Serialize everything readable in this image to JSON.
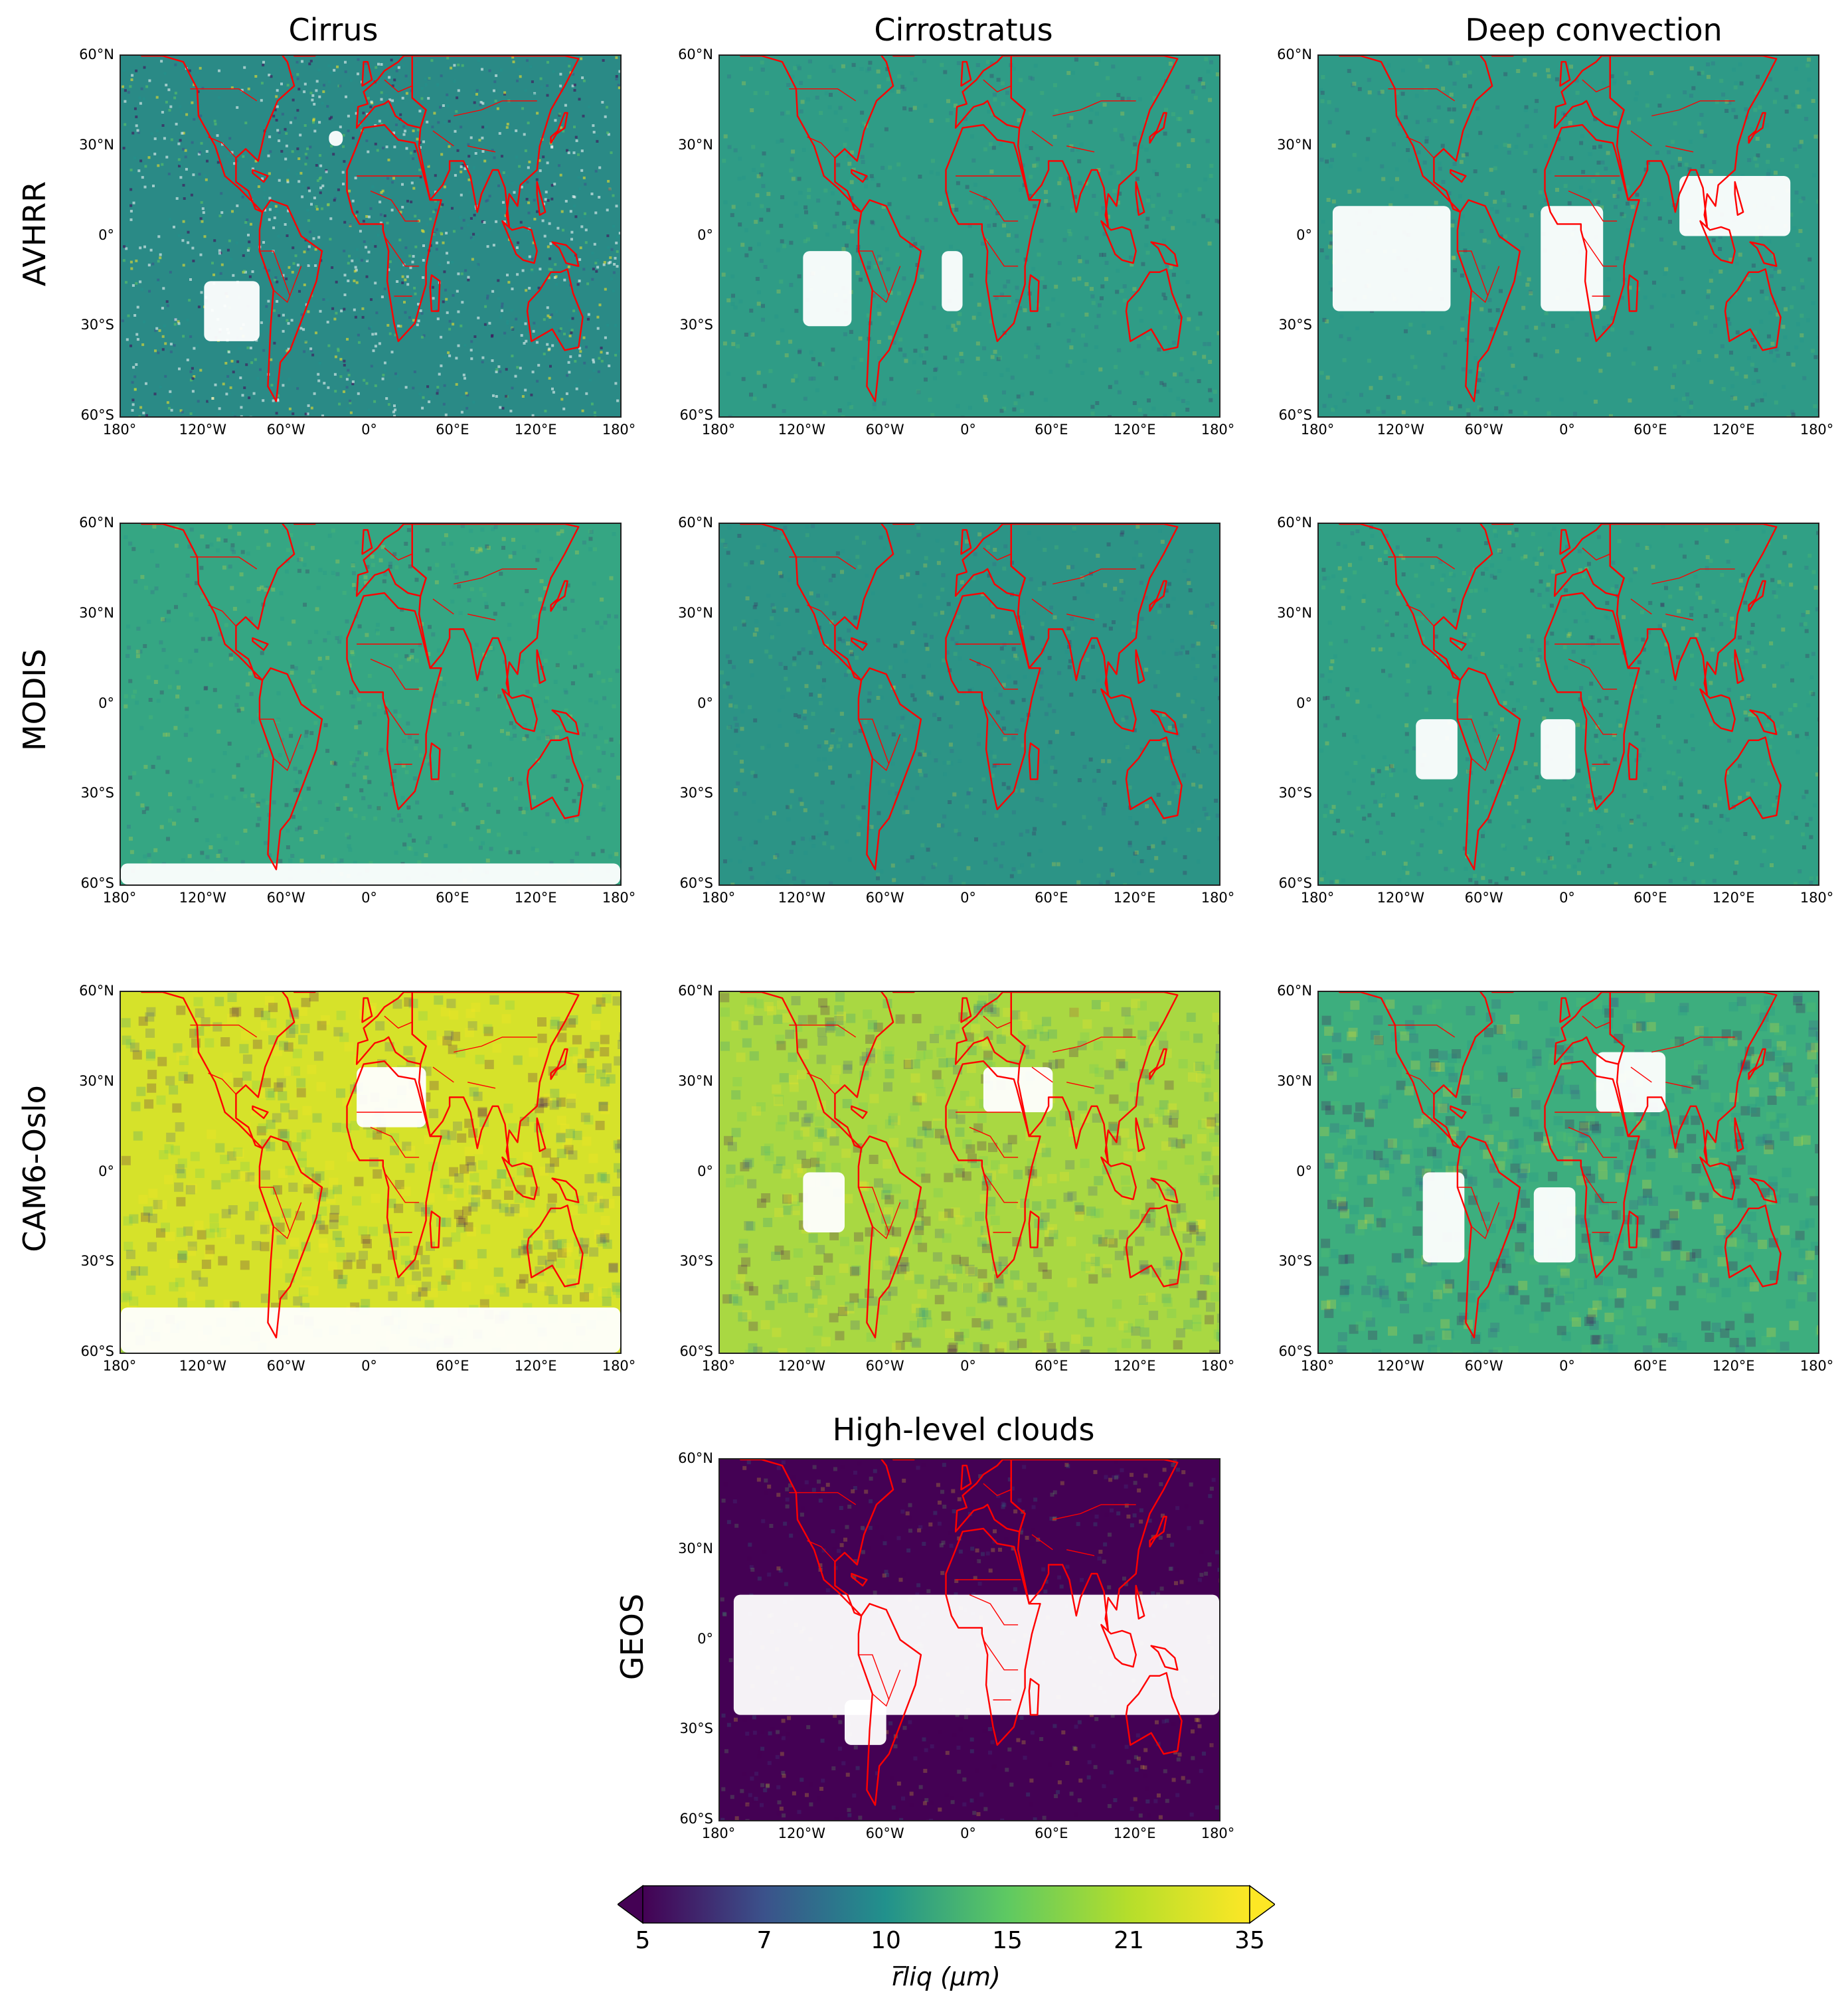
{
  "figure": {
    "column_titles": [
      "Cirrus",
      "Cirrostratus",
      "Deep convection"
    ],
    "row_labels": [
      "AVHRR",
      "MODIS",
      "CAM6-Oslo",
      "GEOS"
    ],
    "geos_panel_title": "High-level clouds",
    "lat_ticks": [
      "60°N",
      "30°N",
      "0°",
      "30°S",
      "60°S"
    ],
    "lon_ticks": [
      "180°",
      "120°W",
      "60°W",
      "0°",
      "60°E",
      "120°E",
      "180°"
    ],
    "coastline_color": "#ff0000",
    "missing_color": "#ffffff"
  },
  "colorbar": {
    "tick_labels": [
      "5",
      "7",
      "10",
      "15",
      "21",
      "35"
    ],
    "label": "r̅liq (μm)",
    "colormap": "viridis",
    "extend": "both",
    "colors": [
      "#440154",
      "#3b528b",
      "#21918c",
      "#5ec962",
      "#fde725"
    ]
  },
  "chart_data": [
    {
      "type": "heatmap",
      "dataset": "AVHRR",
      "cloud_type": "Cirrus",
      "dominant_color": "#2a8a86",
      "noise": "high"
    },
    {
      "type": "heatmap",
      "dataset": "AVHRR",
      "cloud_type": "Cirrostratus",
      "dominant_color": "#2f9c86"
    },
    {
      "type": "heatmap",
      "dataset": "AVHRR",
      "cloud_type": "Deep convection",
      "dominant_color": "#2e9a87"
    },
    {
      "type": "heatmap",
      "dataset": "MODIS",
      "cloud_type": "Cirrus",
      "dominant_color": "#35a683"
    },
    {
      "type": "heatmap",
      "dataset": "MODIS",
      "cloud_type": "Cirrostratus",
      "dominant_color": "#2c9486"
    },
    {
      "type": "heatmap",
      "dataset": "MODIS",
      "cloud_type": "Deep convection",
      "dominant_color": "#30a085"
    },
    {
      "type": "heatmap",
      "dataset": "CAM6-Oslo",
      "cloud_type": "Cirrus",
      "dominant_color": "#d6e22a"
    },
    {
      "type": "heatmap",
      "dataset": "CAM6-Oslo",
      "cloud_type": "Cirrostratus",
      "dominant_color": "#a9d842"
    },
    {
      "type": "heatmap",
      "dataset": "CAM6-Oslo",
      "cloud_type": "Deep convection",
      "dominant_color": "#3dae7e"
    },
    {
      "type": "heatmap",
      "dataset": "GEOS",
      "cloud_type": "High-level clouds",
      "dominant_color": "#440154"
    }
  ]
}
